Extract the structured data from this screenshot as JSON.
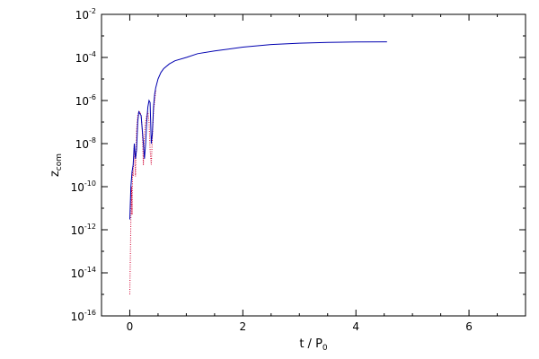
{
  "chart_data": {
    "type": "line",
    "title": "",
    "xlabel": "t / P",
    "xlabel_sub": "0",
    "ylabel": "z",
    "ylabel_sub": "com",
    "xlim": [
      -0.5,
      7
    ],
    "ylim": [
      1e-16,
      0.01
    ],
    "yscale": "log",
    "grid": false,
    "legend": "none",
    "x_ticks": [
      0,
      2,
      4,
      6
    ],
    "x_tick_labels": [
      "0",
      "2",
      "4",
      "6"
    ],
    "y_ticks": [
      1e-16,
      1e-14,
      1e-12,
      1e-10,
      1e-08,
      1e-06,
      0.0001,
      0.01
    ],
    "y_tick_base": "10",
    "y_tick_exponents": [
      "-16",
      "-14",
      "-12",
      "-10",
      "-8",
      "-6",
      "-4",
      "-2"
    ],
    "series": [
      {
        "color": "#d00030",
        "style": "dotted",
        "x": [
          0.0,
          0.01,
          0.02,
          0.03,
          0.04,
          0.05,
          0.06,
          0.08,
          0.1,
          0.12,
          0.14,
          0.16,
          0.18,
          0.2,
          0.22,
          0.24,
          0.26,
          0.28,
          0.3,
          0.32,
          0.34,
          0.36,
          0.38,
          0.4,
          0.42,
          0.44,
          0.46
        ],
        "y": [
          1e-15,
          5e-14,
          3e-12,
          1e-10,
          5e-12,
          5e-10,
          3e-10,
          1e-08,
          3e-10,
          4e-08,
          2e-07,
          3e-07,
          3e-07,
          2e-07,
          5e-08,
          1e-09,
          3e-08,
          1e-07,
          2e-07,
          3e-07,
          1e-07,
          5e-09,
          1e-09,
          2e-08,
          3e-07,
          1e-06,
          3e-06
        ]
      },
      {
        "color": "#0000b0",
        "style": "solid",
        "x": [
          0.0,
          0.02,
          0.04,
          0.06,
          0.08,
          0.1,
          0.12,
          0.14,
          0.16,
          0.2,
          0.24,
          0.26,
          0.28,
          0.3,
          0.32,
          0.34,
          0.36,
          0.38,
          0.4,
          0.42,
          0.44,
          0.46,
          0.5,
          0.55,
          0.6,
          0.7,
          0.8,
          1.0,
          1.2,
          1.5,
          2.0,
          2.5,
          3.0,
          3.5,
          4.0,
          4.55
        ],
        "y": [
          3e-12,
          1e-10,
          5e-10,
          1e-09,
          1e-08,
          2e-09,
          5e-09,
          1e-07,
          3e-07,
          2e-07,
          1e-08,
          2e-09,
          1e-08,
          1e-07,
          5e-07,
          1e-06,
          8e-07,
          1e-08,
          3e-08,
          5e-07,
          2e-06,
          4e-06,
          1e-05,
          2e-05,
          3e-05,
          5e-05,
          7e-05,
          0.0001,
          0.00015,
          0.0002,
          0.0003,
          0.0004,
          0.00046,
          0.0005,
          0.00052,
          0.00053
        ]
      }
    ]
  }
}
